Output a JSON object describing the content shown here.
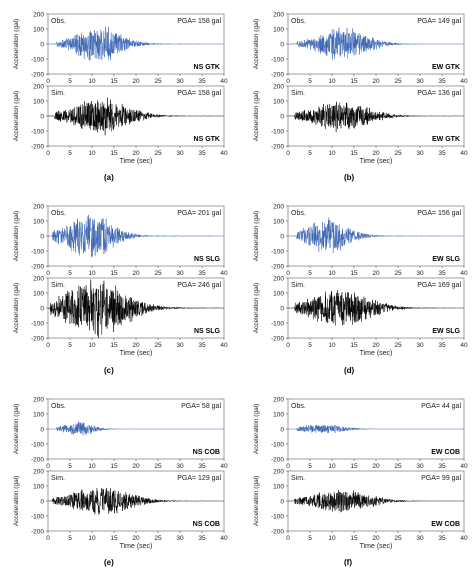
{
  "colors": {
    "observed": "#3a64b4",
    "simulated": "#000000",
    "frame": "#888888",
    "grid": "#e4e4e4"
  },
  "panels": [
    {
      "label": "(a)",
      "obs_label": "Obs.",
      "sim_label": "Sim.",
      "obs_pga": "PGA= 158 gal",
      "sim_pga": "PGA= 158 gal",
      "obs_tag": "NS   GTK",
      "sim_tag": "NS   GTK"
    },
    {
      "label": "(b)",
      "obs_label": "Obs.",
      "sim_label": "Sim.",
      "obs_pga": "PGA= 149 gal",
      "sim_pga": "PGA= 136 gal",
      "obs_tag": "EW   GTK",
      "sim_tag": "EW   GTK"
    },
    {
      "label": "(c)",
      "obs_label": "Obs.",
      "sim_label": "Sim.",
      "obs_pga": "PGA= 201 gal",
      "sim_pga": "PGA= 246 gal",
      "obs_tag": "NS   SLG",
      "sim_tag": "NS   SLG"
    },
    {
      "label": "(d)",
      "obs_label": "Obs.",
      "sim_label": "Sim.",
      "obs_pga": "PGA= 156 gal",
      "sim_pga": "PGA= 169 gal",
      "obs_tag": "EW   SLG",
      "sim_tag": "EW   SLG"
    },
    {
      "label": "(e)",
      "obs_label": "Obs.",
      "sim_label": "Sim.",
      "obs_pga": "PGA= 58 gal",
      "sim_pga": "PGA= 129 gal",
      "obs_tag": "NS   COB",
      "sim_tag": "NS   COB"
    },
    {
      "label": "(f)",
      "obs_label": "Obs.",
      "sim_label": "Sim.",
      "obs_pga": "PGA= 44 gal",
      "sim_pga": "PGA= 99 gal",
      "obs_tag": "EW   COB",
      "sim_tag": "EW   COB"
    }
  ],
  "chart_data": {
    "type": "line",
    "xlabel": "Time (sec)",
    "ylabel": "Acceleration (gal)",
    "xlim": [
      0,
      40
    ],
    "ylim": [
      -200,
      200
    ],
    "xticks": [
      0,
      5,
      10,
      15,
      20,
      25,
      30,
      35,
      40
    ],
    "yticks": [
      200,
      100,
      0,
      -100,
      -200
    ],
    "series_envelopes": [
      {
        "panel": "a",
        "trace": "Obs.",
        "pga": 158,
        "onset": 2.0,
        "peak_time": 11.5,
        "width": 6.5
      },
      {
        "panel": "a",
        "trace": "Sim.",
        "pga": 158,
        "onset": 1.5,
        "peak_time": 12.0,
        "width": 8.0
      },
      {
        "panel": "b",
        "trace": "Obs.",
        "pga": 149,
        "onset": 2.0,
        "peak_time": 12.5,
        "width": 7.0
      },
      {
        "panel": "b",
        "trace": "Sim.",
        "pga": 136,
        "onset": 1.5,
        "peak_time": 12.0,
        "width": 8.0
      },
      {
        "panel": "c",
        "trace": "Obs.",
        "pga": 201,
        "onset": 1.0,
        "peak_time": 9.5,
        "width": 6.5
      },
      {
        "panel": "c",
        "trace": "Sim.",
        "pga": 246,
        "onset": 0.5,
        "peak_time": 11.0,
        "width": 9.0
      },
      {
        "panel": "d",
        "trace": "Obs.",
        "pga": 156,
        "onset": 2.0,
        "peak_time": 9.0,
        "width": 6.0
      },
      {
        "panel": "d",
        "trace": "Sim.",
        "pga": 169,
        "onset": 1.5,
        "peak_time": 12.0,
        "width": 8.5
      },
      {
        "panel": "e",
        "trace": "Obs.",
        "pga": 58,
        "onset": 2.0,
        "peak_time": 7.0,
        "width": 4.5
      },
      {
        "panel": "e",
        "trace": "Sim.",
        "pga": 129,
        "onset": 1.0,
        "peak_time": 12.0,
        "width": 8.5
      },
      {
        "panel": "f",
        "trace": "Obs.",
        "pga": 44,
        "onset": 2.0,
        "peak_time": 8.0,
        "width": 6.0
      },
      {
        "panel": "f",
        "trace": "Sim.",
        "pga": 99,
        "onset": 1.5,
        "peak_time": 12.0,
        "width": 8.5
      }
    ]
  }
}
